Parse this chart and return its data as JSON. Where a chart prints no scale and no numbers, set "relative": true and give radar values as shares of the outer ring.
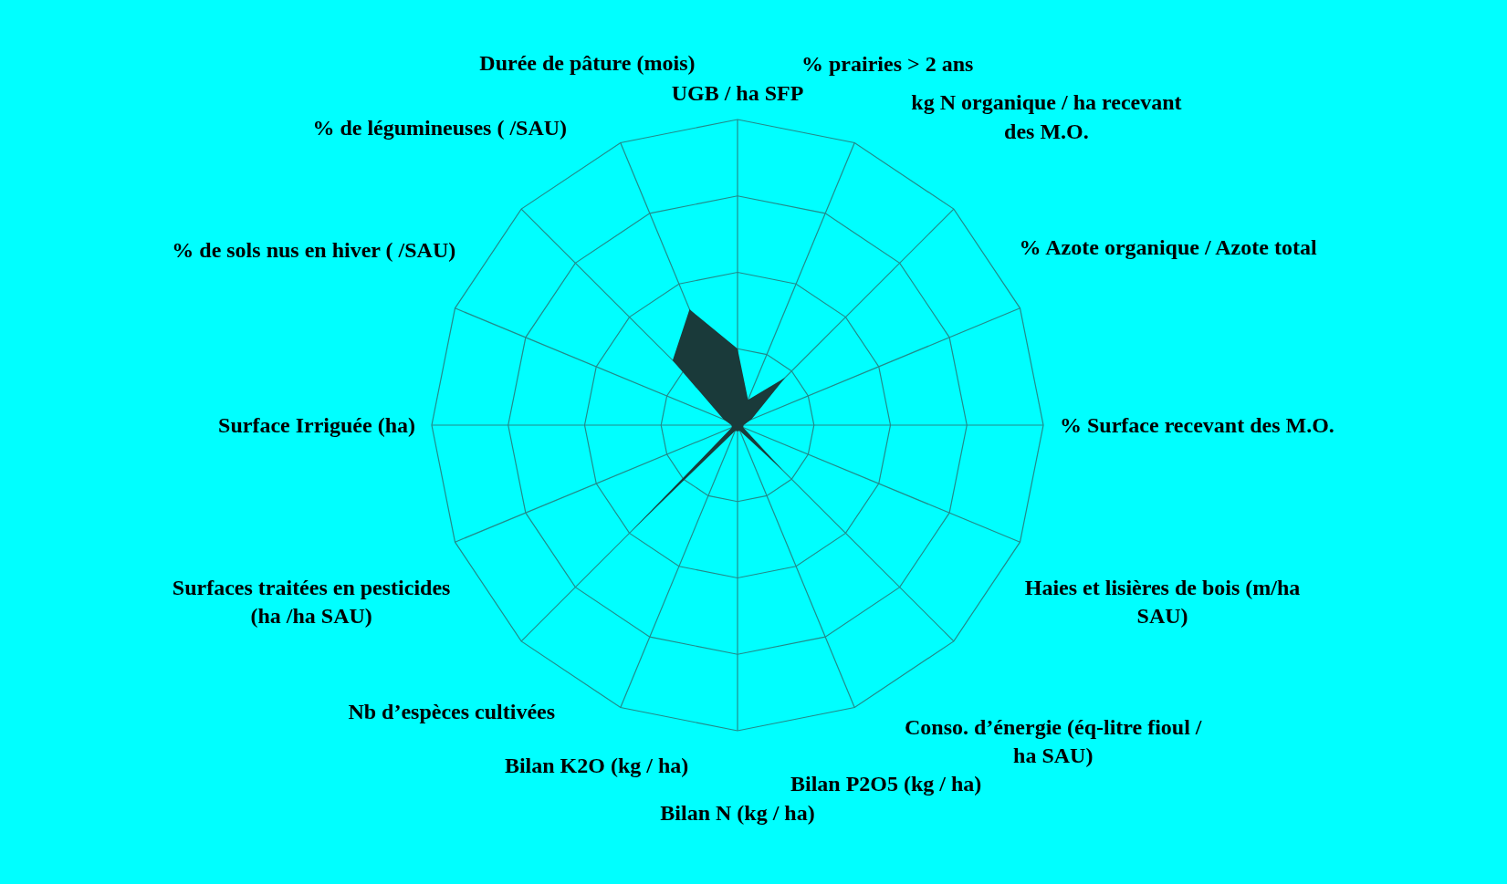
{
  "chart_data": {
    "type": "radar",
    "relative": true,
    "grid": true,
    "categories": [
      "UGB / ha  SFP",
      "% prairies > 2 ans",
      "kg N organique / ha recevant des M.O.",
      "% Azote organique / Azote total",
      "% Surface recevant des M.O.",
      "Haies et lisières de bois (m/ha SAU)",
      "Conso. d’énergie (éq-litre fioul / ha SAU)",
      "Bilan P2O5 (kg / ha)",
      "Bilan N  (kg / ha)",
      "Bilan K2O (kg / ha)",
      "Nb d’espèces cultivées",
      "Surfaces traitées en pesticides (ha /ha SAU)",
      "Surface Irriguée (ha)",
      "% de sols nus en hiver ( /SAU)",
      "% de légumineuses ( /SAU)",
      "Durée de pâture (mois)"
    ],
    "series": [
      {
        "color": "#1a3a3a",
        "values": [
          0.25,
          0.09,
          0.22,
          0.05,
          0.02,
          0.02,
          0.21,
          0.02,
          0.02,
          0.02,
          0.49,
          0.02,
          0.02,
          0.05,
          0.3,
          0.41
        ]
      }
    ]
  }
}
